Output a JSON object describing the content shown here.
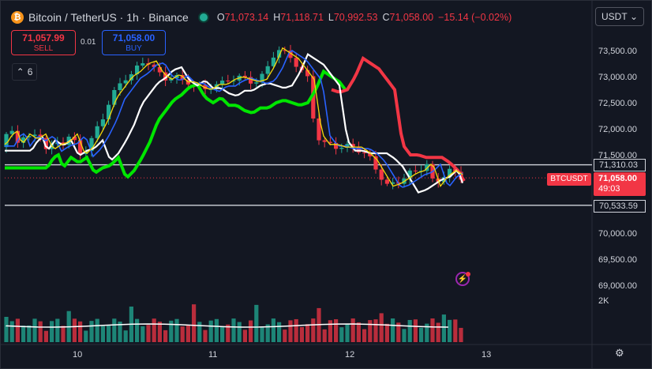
{
  "header": {
    "title": "Bitcoin / TetherUS · 1h · Binance",
    "symbol_icon": "bitcoin-icon",
    "ohlc": [
      {
        "key": "O",
        "value": "71,073.14"
      },
      {
        "key": "H",
        "value": "71,118.71"
      },
      {
        "key": "L",
        "value": "70,992.53"
      },
      {
        "key": "C",
        "value": "71,058.00"
      }
    ],
    "change": "−15.14 (−0.02%)"
  },
  "currency": {
    "label": "USDT",
    "icon": "chevron-down-icon"
  },
  "trade": {
    "sell_price": "71,057.99",
    "sell_label": "SELL",
    "spread": "0.01",
    "buy_price": "71,058.00",
    "buy_label": "BUY"
  },
  "indicators_toggle": {
    "icon": "chevron-up-icon",
    "count": "6"
  },
  "price_axis": [
    "73,500.00",
    "73,000.00",
    "72,500.00",
    "72,000.00",
    "71,500.00",
    "70,000.00",
    "69,500.00",
    "69,000.00"
  ],
  "volume_axis": [
    "2K"
  ],
  "time_axis": [
    "10",
    "11",
    "12",
    "13"
  ],
  "levels": [
    {
      "label": "71,310.03",
      "value": 71310.03
    },
    {
      "label": "70,533.59",
      "value": 70533.59
    }
  ],
  "last_price": {
    "symbol": "BTCUSDT",
    "price": "71,058.00",
    "countdown": "49:03"
  },
  "colors": {
    "up": "#22ab94",
    "down": "#f23645",
    "background": "#131722"
  },
  "icons": {
    "alert": "alert-icon",
    "settings": "gear-icon"
  }
}
